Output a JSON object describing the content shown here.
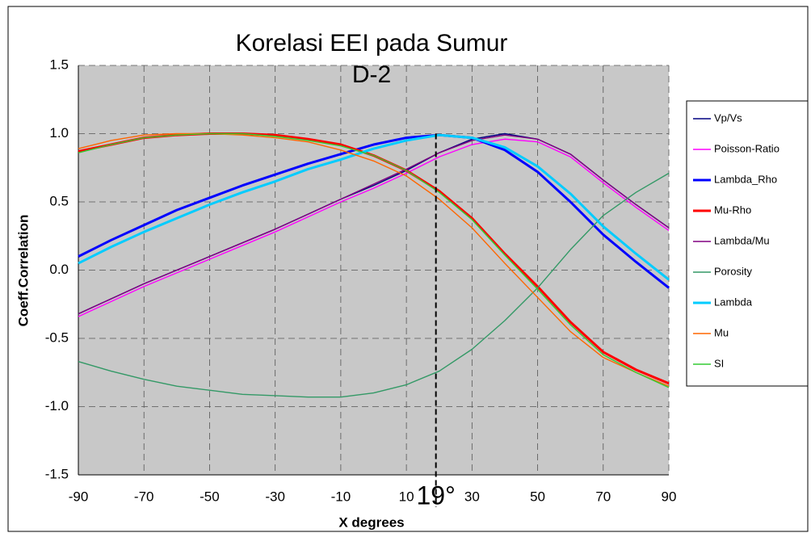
{
  "chart_data": {
    "type": "line",
    "title": [
      "Korelasi EEI pada Sumur",
      "D-2"
    ],
    "x_label": "X degrees",
    "y_label": "Coeff.Correlation",
    "x": [
      -90,
      -80,
      -70,
      -60,
      -50,
      -40,
      -30,
      -20,
      -10,
      0,
      10,
      20,
      30,
      40,
      50,
      60,
      70,
      80,
      90
    ],
    "xlim": [
      -90,
      90
    ],
    "xticks": [
      -90,
      -70,
      -50,
      -30,
      -10,
      10,
      30,
      50,
      70,
      90
    ],
    "ylim": [
      -1.5,
      1.5
    ],
    "yticks": [
      {
        "value": -1.5,
        "label": "-1.5"
      },
      {
        "value": -1,
        "label": "-1.0"
      },
      {
        "value": -0.5,
        "label": "-0.5"
      },
      {
        "value": 0,
        "label": "0.0"
      },
      {
        "value": 0.5,
        "label": "0.5"
      },
      {
        "value": 1,
        "label": "1.0"
      },
      {
        "value": 1.5,
        "label": "1.5"
      }
    ],
    "grid": true,
    "legend": "right",
    "annotation": {
      "x": 19,
      "text": "19°",
      "color": "#ff0000"
    },
    "series": [
      {
        "name": "Vp/Vs",
        "color": "#000080",
        "values": [
          -0.32,
          -0.21,
          -0.1,
          0.0,
          0.1,
          0.2,
          0.3,
          0.41,
          0.52,
          0.62,
          0.73,
          0.86,
          0.96,
          1.0,
          0.96,
          0.85,
          0.66,
          0.48,
          0.31
        ]
      },
      {
        "name": "Poisson-Ratio",
        "color": "#ff00ff",
        "values": [
          -0.34,
          -0.23,
          -0.12,
          -0.02,
          0.08,
          0.18,
          0.28,
          0.39,
          0.5,
          0.6,
          0.71,
          0.83,
          0.92,
          0.96,
          0.94,
          0.83,
          0.64,
          0.46,
          0.29
        ]
      },
      {
        "name": "Lambda_Rho",
        "color": "#0000ff",
        "values": [
          0.1,
          0.22,
          0.33,
          0.44,
          0.53,
          0.62,
          0.7,
          0.78,
          0.85,
          0.92,
          0.97,
          0.99,
          0.97,
          0.88,
          0.72,
          0.5,
          0.26,
          0.06,
          -0.13
        ]
      },
      {
        "name": "Mu-Rho",
        "color": "#ff0000",
        "values": [
          0.87,
          0.92,
          0.97,
          0.99,
          1.0,
          1.0,
          0.99,
          0.96,
          0.92,
          0.84,
          0.73,
          0.58,
          0.38,
          0.12,
          -0.12,
          -0.38,
          -0.6,
          -0.73,
          -0.83
        ]
      },
      {
        "name": "Lambda/Mu",
        "color": "#800080",
        "values": [
          -0.32,
          -0.21,
          -0.1,
          0.0,
          0.1,
          0.2,
          0.3,
          0.41,
          0.52,
          0.63,
          0.74,
          0.86,
          0.95,
          0.99,
          0.96,
          0.85,
          0.66,
          0.48,
          0.31
        ]
      },
      {
        "name": "Porosity",
        "color": "#339966",
        "values": [
          -0.67,
          -0.74,
          -0.8,
          -0.85,
          -0.88,
          -0.91,
          -0.92,
          -0.93,
          -0.93,
          -0.9,
          -0.84,
          -0.74,
          -0.58,
          -0.37,
          -0.13,
          0.15,
          0.4,
          0.57,
          0.71
        ]
      },
      {
        "name": "Lambda",
        "color": "#00ccff",
        "values": [
          0.05,
          0.17,
          0.28,
          0.38,
          0.48,
          0.57,
          0.65,
          0.74,
          0.81,
          0.89,
          0.95,
          0.99,
          0.97,
          0.9,
          0.76,
          0.56,
          0.32,
          0.12,
          -0.07
        ]
      },
      {
        "name": "Mu",
        "color": "#ff6600",
        "values": [
          0.89,
          0.95,
          0.99,
          1.0,
          1.0,
          0.99,
          0.97,
          0.94,
          0.88,
          0.8,
          0.69,
          0.52,
          0.31,
          0.05,
          -0.2,
          -0.45,
          -0.64,
          -0.75,
          -0.85
        ]
      },
      {
        "name": "SI",
        "color": "#33cc33",
        "values": [
          0.86,
          0.92,
          0.97,
          0.99,
          1.0,
          1.0,
          0.98,
          0.95,
          0.91,
          0.84,
          0.73,
          0.57,
          0.37,
          0.11,
          -0.14,
          -0.4,
          -0.62,
          -0.75,
          -0.86
        ]
      }
    ]
  }
}
